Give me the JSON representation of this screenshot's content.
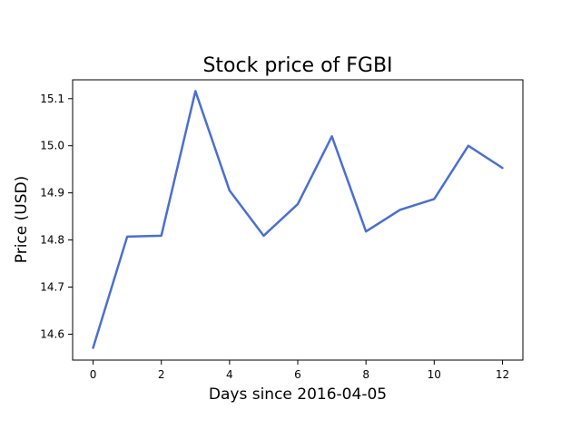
{
  "chart_data": {
    "type": "line",
    "title": "Stock price of FGBI",
    "xlabel": "Days since 2016-04-05",
    "ylabel": "Price (USD)",
    "x": [
      0,
      1,
      2,
      3,
      4,
      5,
      6,
      7,
      8,
      9,
      10,
      11,
      12
    ],
    "series": [
      {
        "values": [
          14.571,
          14.807,
          14.809,
          15.116,
          14.905,
          14.809,
          14.876,
          15.02,
          14.818,
          14.864,
          14.887,
          15.0,
          14.953
        ],
        "color": "#4a6fcf"
      }
    ],
    "xlim": [
      -0.6,
      12.6
    ],
    "ylim": [
      14.545,
      15.14
    ],
    "xticks": [
      0,
      2,
      4,
      6,
      8,
      10,
      12
    ],
    "xtick_labels": [
      "0",
      "2",
      "4",
      "6",
      "8",
      "10",
      "12"
    ],
    "yticks": [
      14.6,
      14.7,
      14.8,
      14.9,
      15.0,
      15.1
    ],
    "ytick_labels": [
      "14.6",
      "14.7",
      "14.8",
      "14.9",
      "15.0",
      "15.1"
    ],
    "grid": false,
    "legend": "none"
  }
}
